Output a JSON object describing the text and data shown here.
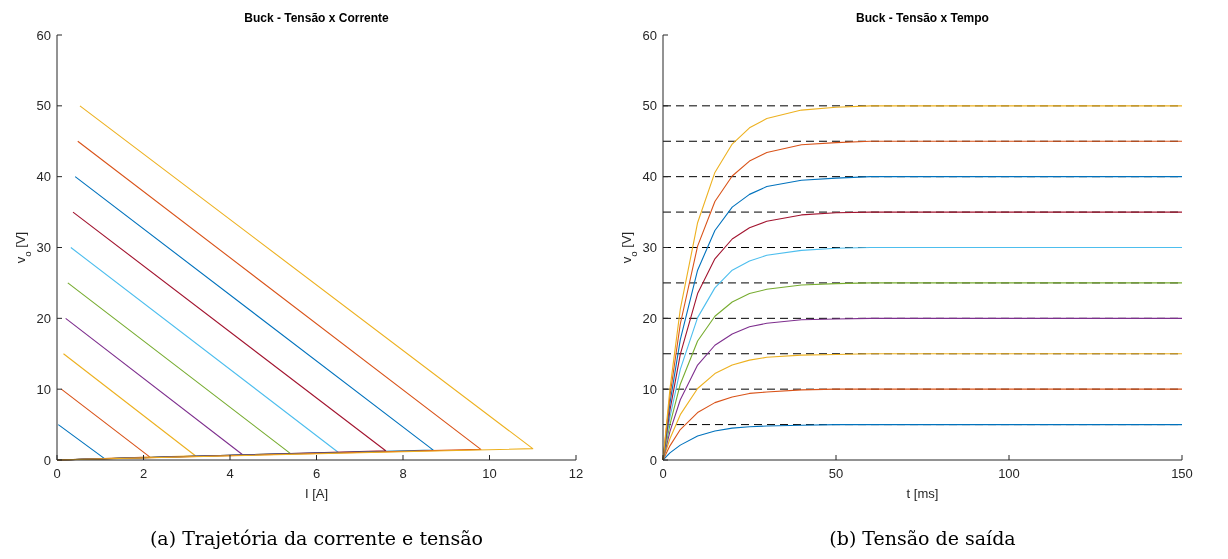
{
  "chart_data": [
    {
      "type": "line",
      "title": "Buck - Tensão x Corrente",
      "xlabel": "I [A]",
      "ylabel": "v$_{o}$ [V]",
      "xlim": [
        0,
        12
      ],
      "ylim": [
        0,
        60
      ],
      "xticks": [
        0,
        2,
        4,
        6,
        8,
        10,
        12
      ],
      "yticks": [
        0,
        10,
        20,
        30,
        40,
        50,
        60
      ],
      "series": [
        {
          "color": "#0072bd",
          "x": [
            0,
            1.1,
            0.03
          ],
          "values": [
            0,
            0.2,
            5
          ]
        },
        {
          "color": "#d95319",
          "x": [
            0,
            2.15,
            0.1
          ],
          "values": [
            0,
            0.4,
            10
          ]
        },
        {
          "color": "#edb120",
          "x": [
            0,
            3.2,
            0.15
          ],
          "values": [
            0,
            0.6,
            15
          ]
        },
        {
          "color": "#7e2f8e",
          "x": [
            0,
            4.3,
            0.2
          ],
          "values": [
            0,
            0.7,
            20
          ]
        },
        {
          "color": "#77ac30",
          "x": [
            0,
            5.4,
            0.25
          ],
          "values": [
            0,
            0.9,
            25
          ]
        },
        {
          "color": "#4dbeee",
          "x": [
            0,
            6.5,
            0.32
          ],
          "values": [
            0,
            1.1,
            30
          ]
        },
        {
          "color": "#a2142f",
          "x": [
            0,
            7.6,
            0.37
          ],
          "values": [
            0,
            1.3,
            35
          ]
        },
        {
          "color": "#0072bd",
          "x": [
            0,
            8.7,
            0.42
          ],
          "values": [
            0,
            1.4,
            40
          ]
        },
        {
          "color": "#d95319",
          "x": [
            0,
            9.8,
            0.48
          ],
          "values": [
            0,
            1.5,
            45
          ]
        },
        {
          "color": "#edb120",
          "x": [
            0,
            11,
            0.53
          ],
          "values": [
            0,
            1.6,
            50
          ]
        }
      ],
      "annotations": [
        "(a) Trajetória da corrente e tensão"
      ]
    },
    {
      "type": "line",
      "title": "Buck - Tensão x Tempo",
      "xlabel": "t [ms]",
      "ylabel": "v$_{o}$ [V]",
      "xlim": [
        0,
        150
      ],
      "ylim": [
        0,
        60
      ],
      "xticks": [
        0,
        50,
        100,
        150
      ],
      "yticks": [
        0,
        10,
        20,
        30,
        40,
        50,
        60
      ],
      "x": [
        0,
        2,
        5,
        10,
        15,
        20,
        25,
        30,
        40,
        50,
        60,
        80,
        100,
        150
      ],
      "series": [
        {
          "color": "#0072bd",
          "values": [
            0,
            1,
            2.1,
            3.4,
            4.1,
            4.5,
            4.7,
            4.8,
            4.9,
            5,
            5,
            5,
            5,
            5
          ]
        },
        {
          "color": "#d95319",
          "values": [
            0,
            2,
            4.3,
            6.7,
            8.1,
            8.9,
            9.4,
            9.6,
            9.9,
            10,
            10,
            10,
            10,
            10
          ]
        },
        {
          "color": "#edb120",
          "values": [
            0,
            3,
            6.4,
            10.1,
            12.2,
            13.4,
            14.1,
            14.5,
            14.8,
            14.9,
            15,
            15,
            15,
            15
          ]
        },
        {
          "color": "#7e2f8e",
          "values": [
            0,
            4,
            8.5,
            13.4,
            16.2,
            17.8,
            18.8,
            19.3,
            19.8,
            19.9,
            20,
            20,
            20,
            20
          ]
        },
        {
          "color": "#77ac30",
          "values": [
            0,
            5,
            10.7,
            16.8,
            20.3,
            22.3,
            23.5,
            24.1,
            24.7,
            24.9,
            25,
            25,
            25,
            25
          ]
        },
        {
          "color": "#4dbeee",
          "values": [
            0,
            6,
            12.8,
            20.1,
            24.3,
            26.8,
            28.1,
            28.9,
            29.6,
            29.9,
            30,
            30,
            30,
            30
          ]
        },
        {
          "color": "#a2142f",
          "values": [
            0,
            7,
            14.9,
            23.5,
            28.4,
            31.2,
            32.8,
            33.7,
            34.6,
            34.9,
            35,
            35,
            35,
            35
          ]
        },
        {
          "color": "#0072bd",
          "values": [
            0,
            8,
            17,
            26.8,
            32.4,
            35.7,
            37.5,
            38.6,
            39.5,
            39.8,
            40,
            40,
            40,
            40
          ]
        },
        {
          "color": "#d95319",
          "values": [
            0,
            9,
            19.2,
            30.2,
            36.5,
            40.1,
            42.2,
            43.4,
            44.5,
            44.8,
            45,
            45,
            45,
            45
          ]
        },
        {
          "color": "#edb120",
          "values": [
            0,
            10,
            21.3,
            33.5,
            40.6,
            44.6,
            46.9,
            48.2,
            49.4,
            49.8,
            50,
            50,
            50,
            50
          ]
        }
      ],
      "ref_lines": [
        {
          "axis": "y",
          "value": 5,
          "color": "#000000",
          "line_style": "dashed"
        },
        {
          "axis": "y",
          "value": 10,
          "color": "#000000",
          "line_style": "dashed"
        },
        {
          "axis": "y",
          "value": 15,
          "color": "#000000",
          "line_style": "dashed"
        },
        {
          "axis": "y",
          "value": 20,
          "color": "#000000",
          "line_style": "dashed"
        },
        {
          "axis": "y",
          "value": 25,
          "color": "#000000",
          "line_style": "dashed"
        },
        {
          "axis": "y",
          "value": 30,
          "color": "#000000",
          "line_style": "dashed"
        },
        {
          "axis": "y",
          "value": 35,
          "color": "#000000",
          "line_style": "dashed"
        },
        {
          "axis": "y",
          "value": 40,
          "color": "#000000",
          "line_style": "dashed"
        },
        {
          "axis": "y",
          "value": 45,
          "color": "#000000",
          "line_style": "dashed"
        },
        {
          "axis": "y",
          "value": 50,
          "color": "#000000",
          "line_style": "dashed"
        }
      ],
      "annotations": [
        "(b) Tensão de saída"
      ]
    }
  ]
}
